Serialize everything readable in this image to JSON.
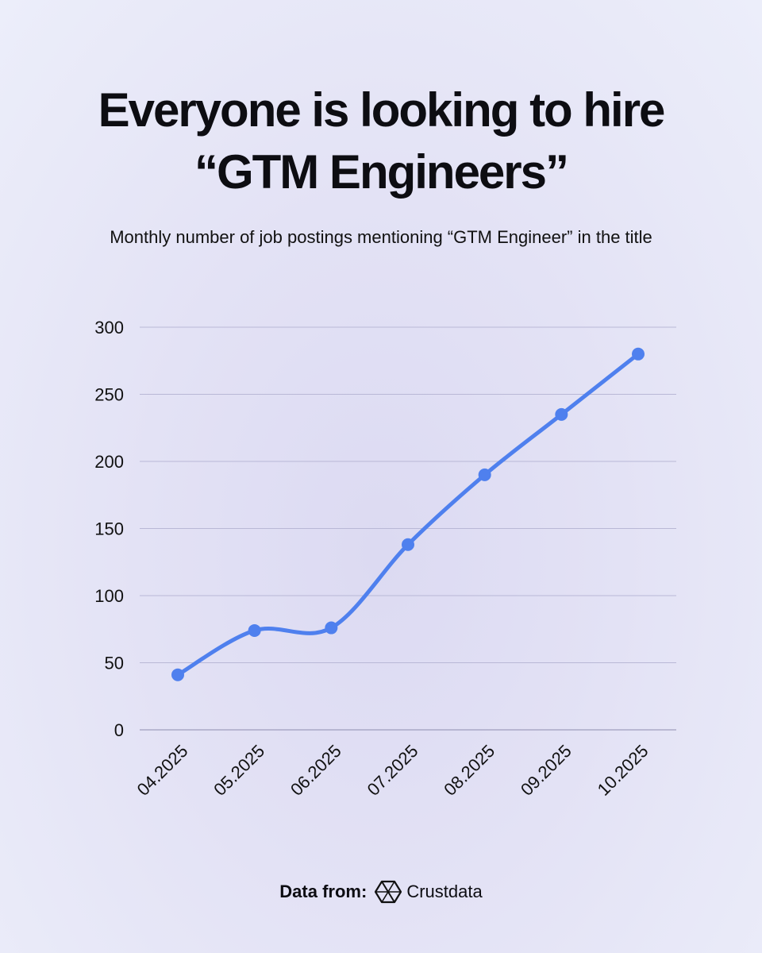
{
  "title_line1": "Everyone is looking to hire",
  "title_line2": "“GTM Engineers”",
  "subtitle": "Monthly number of job postings mentioning “GTM Engineer” in the title",
  "footer": {
    "label": "Data from:",
    "brand": "Crustdata",
    "logo_icon": "crustdata-logo-icon"
  },
  "chart_data": {
    "type": "line",
    "x": [
      "04.2025",
      "05.2025",
      "06.2025",
      "07.2025",
      "08.2025",
      "09.2025",
      "10.2025"
    ],
    "series": [
      {
        "values": [
          41,
          74,
          76,
          138,
          190,
          235,
          280
        ],
        "color": "#4f80ee"
      }
    ],
    "yticks": [
      0,
      50,
      100,
      150,
      200,
      250,
      300
    ],
    "ylim": [
      0,
      300
    ],
    "grid": true,
    "gridColor": "#b9b8d6",
    "smooth": true,
    "markers": true
  }
}
